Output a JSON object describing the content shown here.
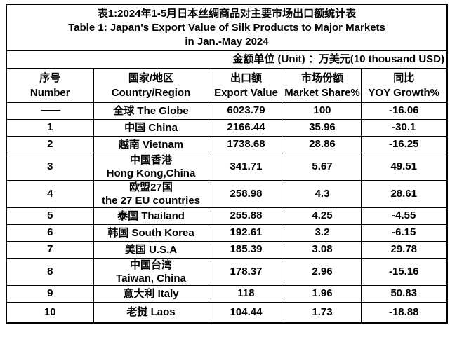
{
  "header": {
    "title_zh": "表1:2024年1-5月日本丝绸商品对主要市场出口额统计表",
    "title_en": "Table 1: Japan's Export Value of Silk Products to Major Markets",
    "title_en2": "in Jan.-May 2024",
    "unit_note": "金额单位 (Unit) ：万美元(10 thousand USD)"
  },
  "columns": [
    {
      "zh": "序号",
      "en": "Number"
    },
    {
      "zh": "国家/地区",
      "en": "Country/Region"
    },
    {
      "zh": "出口额",
      "en": "Export Value"
    },
    {
      "zh": "市场份额",
      "en": "Market Share%"
    },
    {
      "zh": "同比",
      "en": "YOY Growth%"
    }
  ],
  "rows": [
    {
      "number": "——",
      "name": [
        "全球  The Globe"
      ],
      "export_value": "6023.79",
      "market_share": "100",
      "yoy_growth": "-16.06"
    },
    {
      "number": "1",
      "name": [
        "中国 China"
      ],
      "export_value": "2166.44",
      "market_share": "35.96",
      "yoy_growth": "-30.1"
    },
    {
      "number": "2",
      "name": [
        "越南 Vietnam"
      ],
      "export_value": "1738.68",
      "market_share": "28.86",
      "yoy_growth": "-16.25"
    },
    {
      "number": "3",
      "name": [
        "中国香港",
        "Hong Kong,China"
      ],
      "export_value": "341.71",
      "market_share": "5.67",
      "yoy_growth": "49.51"
    },
    {
      "number": "4",
      "name": [
        "欧盟27国",
        "the 27 EU countries"
      ],
      "export_value": "258.98",
      "market_share": "4.3",
      "yoy_growth": "28.61"
    },
    {
      "number": "5",
      "name": [
        "泰国 Thailand"
      ],
      "export_value": "255.88",
      "market_share": "4.25",
      "yoy_growth": "-4.55"
    },
    {
      "number": "6",
      "name": [
        "韩国 South Korea"
      ],
      "export_value": "192.61",
      "market_share": "3.2",
      "yoy_growth": "-6.15"
    },
    {
      "number": "7",
      "name": [
        "美国 U.S.A"
      ],
      "export_value": "185.39",
      "market_share": "3.08",
      "yoy_growth": "29.78"
    },
    {
      "number": "8",
      "name": [
        "中国台湾",
        "Taiwan, China"
      ],
      "export_value": "178.37",
      "market_share": "2.96",
      "yoy_growth": "-15.16"
    },
    {
      "number": "9",
      "name": [
        "意大利 Italy"
      ],
      "export_value": "118",
      "market_share": "1.96",
      "yoy_growth": "50.83"
    },
    {
      "number": "10",
      "name": [
        "老挝 Laos"
      ],
      "export_value": "104.44",
      "market_share": "1.73",
      "yoy_growth": "-18.88"
    }
  ]
}
